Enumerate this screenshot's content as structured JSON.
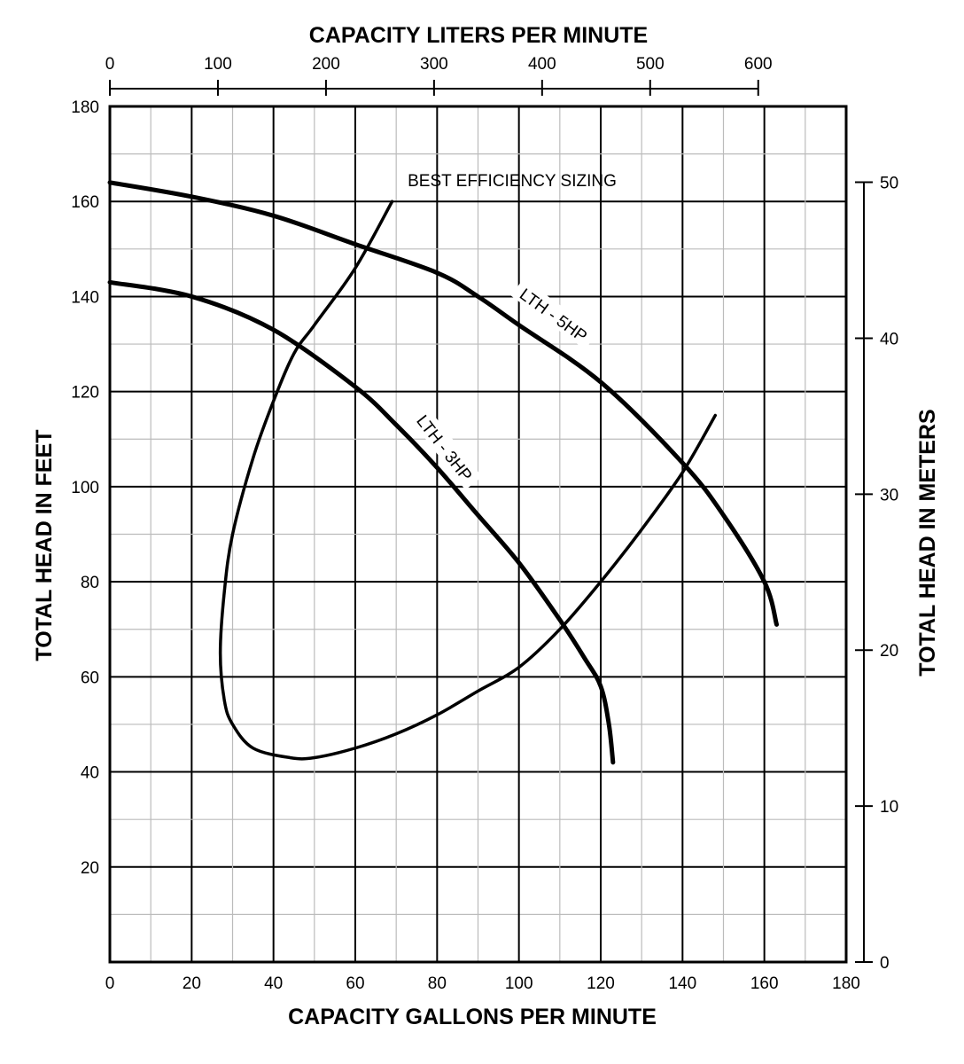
{
  "chart_data": {
    "type": "line",
    "title": "",
    "xlabel": "CAPACITY GALLONS PER MINUTE",
    "ylabel": "TOTAL HEAD IN FEET",
    "x2label": "CAPACITY LITERS PER MINUTE",
    "y2label": "TOTAL HEAD IN METERS",
    "xlim": [
      0,
      180
    ],
    "ylim": [
      0,
      180
    ],
    "x2lim": [
      0,
      681.4
    ],
    "y2lim": [
      0,
      54.86
    ],
    "xticks": [
      "0",
      "20",
      "40",
      "60",
      "80",
      "100",
      "120",
      "140",
      "160",
      "180"
    ],
    "yticks": [
      "20",
      "40",
      "60",
      "80",
      "100",
      "120",
      "140",
      "160",
      "180"
    ],
    "x2ticks": [
      "0",
      "100",
      "200",
      "300",
      "400",
      "500",
      "600"
    ],
    "y2ticks": [
      "0",
      "10",
      "20",
      "30",
      "40",
      "50"
    ],
    "grid": true,
    "annotation": "BEST EFFICIENCY SIZING",
    "series": [
      {
        "name": "LTH - 5HP",
        "x": [
          0,
          20,
          40,
          60,
          80,
          90,
          100,
          120,
          140,
          150,
          160,
          163
        ],
        "y": [
          164,
          161,
          157,
          151,
          145,
          140,
          134,
          122,
          105,
          94,
          80,
          71
        ]
      },
      {
        "name": "LTH - 3HP",
        "x": [
          0,
          20,
          40,
          60,
          70,
          80,
          90,
          100,
          110,
          116,
          120,
          122,
          123
        ],
        "y": [
          143,
          140,
          133,
          121,
          113,
          104,
          94,
          84,
          72,
          64,
          58,
          50,
          42
        ]
      },
      {
        "name": "BEST EFFICIENCY SIZING",
        "x": [
          69,
          60,
          50,
          45,
          40,
          35,
          30,
          28,
          27,
          28,
          30,
          35,
          44,
          50,
          60,
          70,
          80,
          90,
          100,
          110,
          120,
          130,
          140,
          148
        ],
        "y": [
          160,
          146,
          134,
          128,
          118,
          106,
          90,
          78,
          65,
          55,
          50,
          45,
          43,
          43,
          45,
          48,
          52,
          57,
          62,
          70,
          80,
          91,
          103,
          115
        ]
      }
    ]
  }
}
